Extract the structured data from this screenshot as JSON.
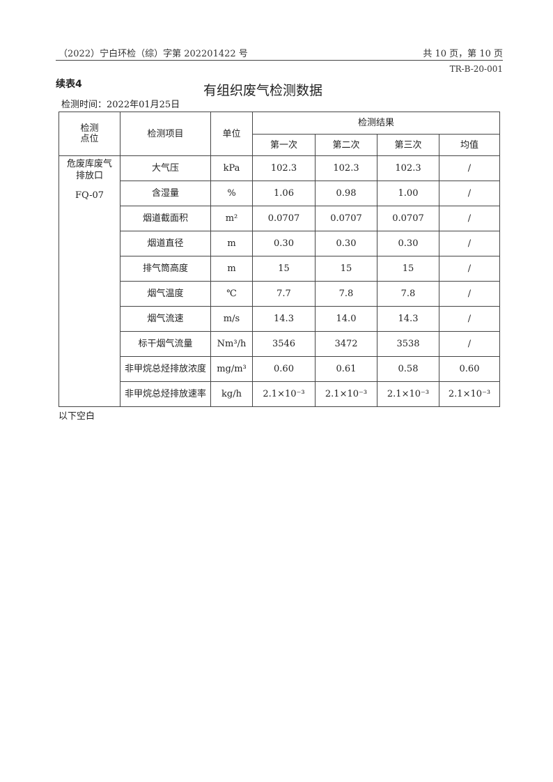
{
  "header": {
    "doc_no": "（2022）宁白环检（综）字第 202201422 号",
    "page_info": "共 10 页，第 10 页",
    "form_code": "TR-B-20-001"
  },
  "table_label": "续表4",
  "title": "有组织废气检测数据",
  "test_date": "检测时间：2022年01月25日",
  "columns": {
    "point": "检测\n点位",
    "item": "检测项目",
    "unit": "单位",
    "results": "检测结果",
    "first": "第一次",
    "second": "第二次",
    "third": "第三次",
    "avg": "均值"
  },
  "point": {
    "name": "危废库废气排放口",
    "code": "FQ-07"
  },
  "rows": [
    {
      "item": "大气压",
      "unit": "kPa",
      "v1": "102.3",
      "v2": "102.3",
      "v3": "102.3",
      "avg": "/"
    },
    {
      "item": "含湿量",
      "unit": "%",
      "v1": "1.06",
      "v2": "0.98",
      "v3": "1.00",
      "avg": "/"
    },
    {
      "item": "烟道截面积",
      "unit": "m²",
      "v1": "0.0707",
      "v2": "0.0707",
      "v3": "0.0707",
      "avg": "/"
    },
    {
      "item": "烟道直径",
      "unit": "m",
      "v1": "0.30",
      "v2": "0.30",
      "v3": "0.30",
      "avg": "/"
    },
    {
      "item": "排气筒高度",
      "unit": "m",
      "v1": "15",
      "v2": "15",
      "v3": "15",
      "avg": "/"
    },
    {
      "item": "烟气温度",
      "unit": "℃",
      "v1": "7.7",
      "v2": "7.8",
      "v3": "7.8",
      "avg": "/"
    },
    {
      "item": "烟气流速",
      "unit": "m/s",
      "v1": "14.3",
      "v2": "14.0",
      "v3": "14.3",
      "avg": "/"
    },
    {
      "item": "标干烟气流量",
      "unit": "Nm³/h",
      "v1": "3546",
      "v2": "3472",
      "v3": "3538",
      "avg": "/"
    },
    {
      "item": "非甲烷总烃排放浓度",
      "unit": "mg/m³",
      "v1": "0.60",
      "v2": "0.61",
      "v3": "0.58",
      "avg": "0.60"
    },
    {
      "item": "非甲烷总烃排放速率",
      "unit": "kg/h",
      "v1": "2.1×10⁻³",
      "v2": "2.1×10⁻³",
      "v3": "2.1×10⁻³",
      "avg": "2.1×10⁻³"
    }
  ],
  "footer_note": "以下空白"
}
